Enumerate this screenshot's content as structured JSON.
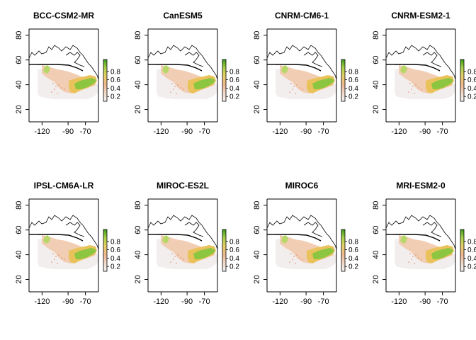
{
  "chart_data": {
    "type": "heatmap",
    "layout": {
      "rows": 2,
      "cols": 4
    },
    "panels": [
      {
        "title": "BCC-CSM2-MR"
      },
      {
        "title": "CanESM5"
      },
      {
        "title": "CNRM-CM6-1"
      },
      {
        "title": "CNRM-ESM2-1"
      },
      {
        "title": "IPSL-CM6A-LR"
      },
      {
        "title": "MIROC-ES2L"
      },
      {
        "title": "MIROC6"
      },
      {
        "title": "MRI-ESM2-0"
      }
    ],
    "x_axis": {
      "range": [
        -135,
        -55
      ],
      "ticks": [
        -120,
        -90,
        -70
      ],
      "tick_labels": [
        "-120",
        "-90",
        "-70"
      ]
    },
    "y_axis": {
      "range": [
        10,
        85
      ],
      "ticks": [
        20,
        40,
        60,
        80
      ],
      "tick_labels": [
        "20",
        "40",
        "60",
        "80"
      ]
    },
    "legend": {
      "placement": "right",
      "range": [
        0,
        1
      ],
      "ticks": [
        0.2,
        0.4,
        0.6,
        0.8
      ],
      "tick_labels": [
        "0.2",
        "0.4",
        "0.6",
        "0.8"
      ],
      "colors": [
        "#f2f2f2",
        "#f1d8c7",
        "#eeb78f",
        "#e8cf66",
        "#a7d14a",
        "#3d9a1c"
      ]
    },
    "grid": false
  }
}
